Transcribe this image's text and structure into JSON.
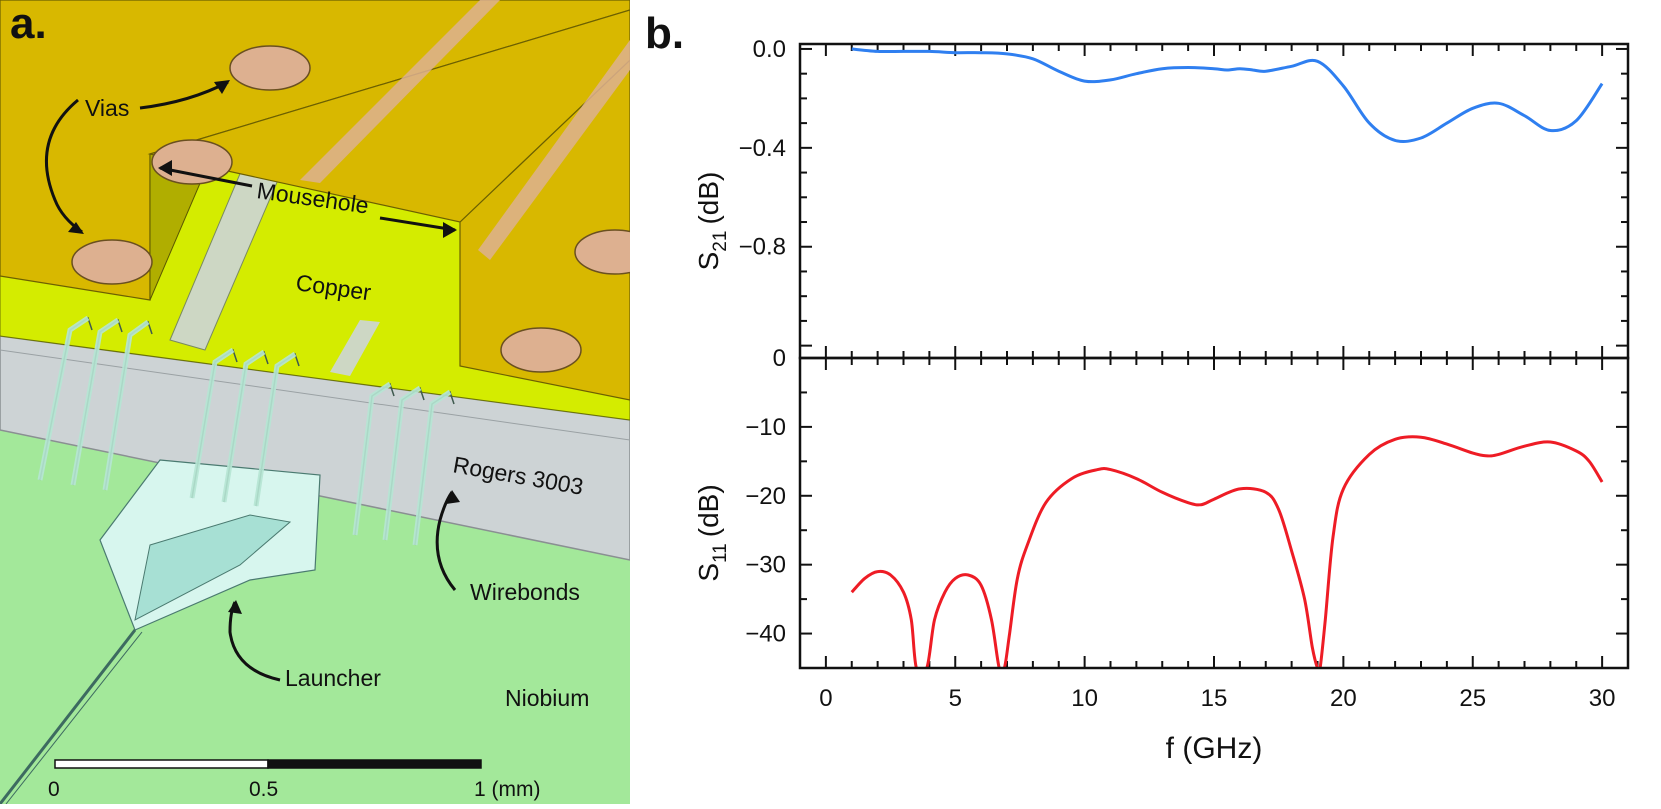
{
  "panel_a": {
    "label": "a.",
    "annotations": {
      "vias": "Vias",
      "mousehole": "Mousehole",
      "copper": "Copper",
      "rogers": "Rogers 3003",
      "wirebonds": "Wirebonds",
      "launcher": "Launcher",
      "niobium": "Niobium"
    },
    "scalebar": {
      "tick_0": "0",
      "tick_mid": "0.5",
      "tick_end": "1 (mm)"
    },
    "colors": {
      "copper": "#d8b800",
      "copper_inner": "#d4ec00",
      "via": "#ddb090",
      "dielectric": "#cdd3d5",
      "niobium": "#a3e89a",
      "wire": "#b6e6d4",
      "launcher": "#d7f6ee"
    }
  },
  "panel_b": {
    "label": "b."
  },
  "chart_data": [
    {
      "type": "line",
      "title": "",
      "xlabel": "f (GHz)",
      "ylabel": "S21 (dB)",
      "ylabel_main": "S",
      "ylabel_sub": "21",
      "ylabel_unit": "(dB)",
      "xlim": [
        -1,
        31
      ],
      "ylim": [
        -1.25,
        0.02
      ],
      "yticks": [
        0.0,
        -0.4,
        -0.8
      ],
      "ytick_labels": [
        "0.0",
        "−0.4",
        "−0.8"
      ],
      "bottom_label": "0",
      "color": "#2f7ff0",
      "series": [
        {
          "name": "S21",
          "x": [
            1,
            2,
            3,
            4,
            5,
            6,
            7,
            8,
            9,
            10,
            11,
            12,
            13,
            14,
            15,
            15.5,
            16,
            16.5,
            17,
            18,
            19,
            20,
            21,
            22,
            23,
            24,
            25,
            26,
            27,
            28,
            29,
            30
          ],
          "y": [
            0.0,
            -0.01,
            -0.01,
            -0.01,
            -0.015,
            -0.015,
            -0.02,
            -0.04,
            -0.09,
            -0.13,
            -0.125,
            -0.1,
            -0.08,
            -0.075,
            -0.08,
            -0.085,
            -0.08,
            -0.085,
            -0.09,
            -0.07,
            -0.05,
            -0.15,
            -0.3,
            -0.37,
            -0.36,
            -0.3,
            -0.24,
            -0.22,
            -0.27,
            -0.33,
            -0.29,
            -0.14
          ]
        }
      ]
    },
    {
      "type": "line",
      "title": "",
      "xlabel": "f (GHz)",
      "ylabel": "S11 (dB)",
      "ylabel_main": "S",
      "ylabel_sub": "11",
      "ylabel_unit": "(dB)",
      "xlim": [
        -1,
        31
      ],
      "ylim": [
        -45,
        0
      ],
      "yticks": [
        -10,
        -20,
        -30,
        -40
      ],
      "ytick_labels": [
        "−10",
        "−20",
        "−30",
        "−40"
      ],
      "xticks": [
        0,
        5,
        10,
        15,
        20,
        25,
        30
      ],
      "xtick_labels": [
        "0",
        "5",
        "10",
        "15",
        "20",
        "25",
        "30"
      ],
      "color": "#ee1c25",
      "series": [
        {
          "name": "S11",
          "x": [
            1,
            1.5,
            2,
            2.5,
            3,
            3.3,
            3.5,
            3.9,
            4.2,
            4.6,
            5,
            5.5,
            6,
            6.4,
            6.7,
            6.9,
            7.1,
            7.4,
            7.8,
            8.5,
            9.5,
            10.5,
            11,
            12,
            13,
            14,
            14.5,
            15,
            16,
            17,
            17.5,
            18,
            18.5,
            18.8,
            19,
            19.1,
            19.3,
            19.6,
            20,
            21,
            22,
            23,
            24,
            25,
            25.5,
            26,
            27,
            28,
            29,
            29.5,
            30
          ],
          "y": [
            -34,
            -32,
            -31,
            -31.5,
            -34,
            -38,
            -45,
            -45,
            -38,
            -34,
            -32,
            -31.5,
            -33,
            -38,
            -45,
            -45,
            -40,
            -32,
            -27,
            -21,
            -17.5,
            -16.2,
            -16.2,
            -17.5,
            -19.5,
            -21,
            -21.3,
            -20.5,
            -19,
            -19.5,
            -22,
            -28,
            -35,
            -42,
            -45,
            -45,
            -38,
            -26,
            -19,
            -14,
            -11.8,
            -11.5,
            -12.5,
            -13.8,
            -14.2,
            -14,
            -12.8,
            -12.2,
            -13.5,
            -15,
            -18
          ]
        }
      ]
    }
  ]
}
